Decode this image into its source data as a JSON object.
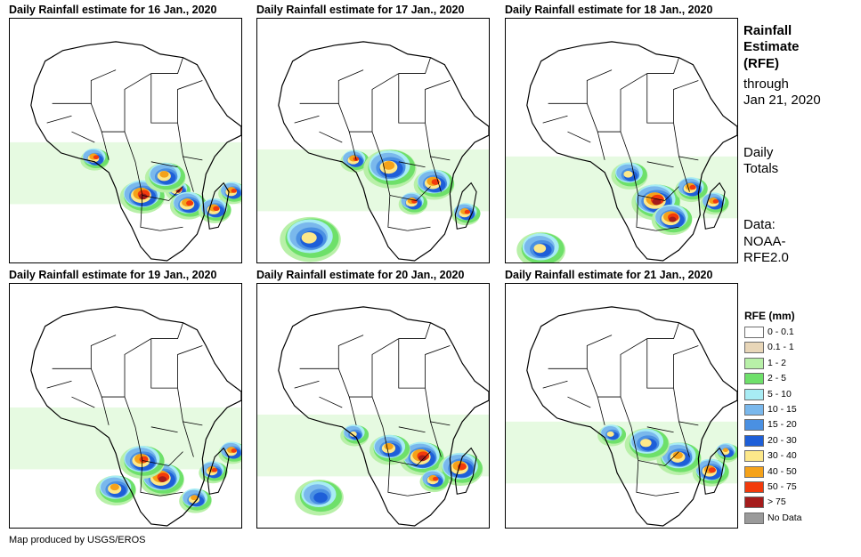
{
  "panels": [
    {
      "title": "Daily Rainfall estimate for 16 Jan., 2020"
    },
    {
      "title": "Daily Rainfall estimate for 17 Jan., 2020"
    },
    {
      "title": "Daily Rainfall estimate for 18 Jan., 2020"
    },
    {
      "title": "Daily Rainfall estimate for 19 Jan., 2020"
    },
    {
      "title": "Daily Rainfall estimate for 20 Jan., 2020"
    },
    {
      "title": "Daily Rainfall estimate for 21 Jan., 2020"
    }
  ],
  "side_info": {
    "title_line1": "Rainfall",
    "title_line2": "Estimate",
    "title_line3": "(RFE)",
    "through_line1": "through",
    "through_line2": "Jan 21, 2020",
    "totals_line1": "Daily",
    "totals_line2": "Totals",
    "data_line1": "Data:",
    "data_line2": "NOAA-",
    "data_line3": "RFE2.0"
  },
  "legend": {
    "title": "RFE (mm)",
    "items": [
      {
        "label": "0 - 0.1",
        "color": "#ffffff"
      },
      {
        "label": "0.1 - 1",
        "color": "#e8d6b8"
      },
      {
        "label": "1 - 2",
        "color": "#b8f0a8"
      },
      {
        "label": "2 - 5",
        "color": "#6ee06a"
      },
      {
        "label": "5 - 10",
        "color": "#a8ecf4"
      },
      {
        "label": "10 - 15",
        "color": "#7ab8ec"
      },
      {
        "label": "15 - 20",
        "color": "#4a90e2"
      },
      {
        "label": "20 - 30",
        "color": "#1e5fd8"
      },
      {
        "label": "30 - 40",
        "color": "#fde88a"
      },
      {
        "label": "40 - 50",
        "color": "#f5a21a"
      },
      {
        "label": "50 - 75",
        "color": "#f23a0c"
      },
      {
        "label": "> 75",
        "color": "#a51c1c"
      },
      {
        "label": "No Data",
        "color": "#9a9a9a"
      }
    ]
  },
  "credit": "Map produced by USGS/EROS"
}
